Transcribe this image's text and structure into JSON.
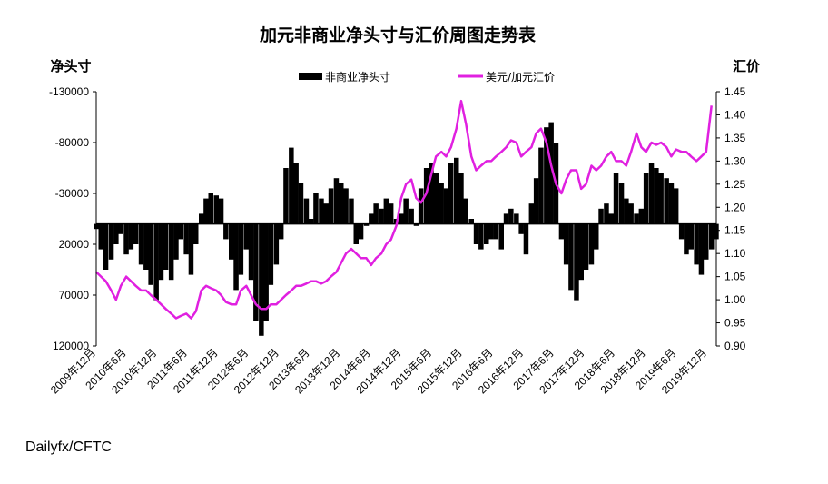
{
  "source_text": "Dailyfx/CFTC",
  "chart_data": {
    "type": "bar+line",
    "title": "加元非商业净头寸与汇价周图走势表",
    "left_axis": {
      "label": "净头寸",
      "range": [
        -130000,
        120000
      ],
      "reversed": true,
      "ticks": [
        "-130000",
        "-80000",
        "-30000",
        "20000",
        "70000",
        "120000"
      ],
      "tick_values": [
        -130000,
        -80000,
        -30000,
        20000,
        70000,
        120000
      ]
    },
    "right_axis": {
      "label": "汇价",
      "range": [
        0.9,
        1.45
      ],
      "ticks": [
        "1.45",
        "1.40",
        "1.35",
        "1.30",
        "1.25",
        "1.20",
        "1.15",
        "1.10",
        "1.05",
        "1.00",
        "0.95",
        "0.90"
      ],
      "tick_values": [
        1.45,
        1.4,
        1.35,
        1.3,
        1.25,
        1.2,
        1.15,
        1.1,
        1.05,
        1.0,
        0.95,
        0.9
      ]
    },
    "x_ticks": [
      "2009年12月",
      "2010年6月",
      "2010年12月",
      "2011年6月",
      "2011年12月",
      "2012年6月",
      "2012年12月",
      "2013年6月",
      "2013年12月",
      "2014年6月",
      "2014年12月",
      "2015年6月",
      "2015年12月",
      "2016年6月",
      "2016年12月",
      "2017年6月",
      "2017年12月",
      "2018年6月",
      "2018年12月",
      "2019年6月",
      "2019年12月"
    ],
    "x_range": [
      2009.92,
      2020.25
    ],
    "grid": false,
    "legend_position": "top",
    "legend": [
      {
        "name": "非商业净头寸",
        "color": "#000000",
        "kind": "bar"
      },
      {
        "name": "美元/加元汇价",
        "color": "#e020e0",
        "kind": "line"
      }
    ],
    "series": [
      {
        "name": "非商业净头寸",
        "type": "bar",
        "color": "#000000",
        "points": [
          [
            2009.92,
            5000
          ],
          [
            2010.0,
            25000
          ],
          [
            2010.08,
            45000
          ],
          [
            2010.17,
            35000
          ],
          [
            2010.25,
            20000
          ],
          [
            2010.33,
            10000
          ],
          [
            2010.42,
            30000
          ],
          [
            2010.5,
            25000
          ],
          [
            2010.58,
            20000
          ],
          [
            2010.67,
            40000
          ],
          [
            2010.75,
            45000
          ],
          [
            2010.83,
            60000
          ],
          [
            2010.92,
            75000
          ],
          [
            2011.0,
            55000
          ],
          [
            2011.08,
            45000
          ],
          [
            2011.17,
            55000
          ],
          [
            2011.25,
            35000
          ],
          [
            2011.33,
            15000
          ],
          [
            2011.42,
            30000
          ],
          [
            2011.5,
            50000
          ],
          [
            2011.58,
            20000
          ],
          [
            2011.67,
            -10000
          ],
          [
            2011.75,
            -25000
          ],
          [
            2011.83,
            -30000
          ],
          [
            2011.92,
            -28000
          ],
          [
            2012.0,
            -25000
          ],
          [
            2012.08,
            15000
          ],
          [
            2012.17,
            35000
          ],
          [
            2012.25,
            65000
          ],
          [
            2012.33,
            50000
          ],
          [
            2012.42,
            25000
          ],
          [
            2012.5,
            55000
          ],
          [
            2012.58,
            95000
          ],
          [
            2012.67,
            110000
          ],
          [
            2012.75,
            95000
          ],
          [
            2012.83,
            60000
          ],
          [
            2012.92,
            40000
          ],
          [
            2013.0,
            15000
          ],
          [
            2013.08,
            -55000
          ],
          [
            2013.17,
            -75000
          ],
          [
            2013.25,
            -60000
          ],
          [
            2013.33,
            -40000
          ],
          [
            2013.42,
            -25000
          ],
          [
            2013.5,
            -5000
          ],
          [
            2013.58,
            -30000
          ],
          [
            2013.67,
            -25000
          ],
          [
            2013.75,
            -20000
          ],
          [
            2013.83,
            -35000
          ],
          [
            2013.92,
            -45000
          ],
          [
            2014.0,
            -40000
          ],
          [
            2014.08,
            -35000
          ],
          [
            2014.17,
            -25000
          ],
          [
            2014.25,
            20000
          ],
          [
            2014.33,
            15000
          ],
          [
            2014.42,
            2000
          ],
          [
            2014.5,
            -10000
          ],
          [
            2014.58,
            -20000
          ],
          [
            2014.67,
            -15000
          ],
          [
            2014.75,
            -25000
          ],
          [
            2014.83,
            -20000
          ],
          [
            2014.92,
            -5000
          ],
          [
            2015.0,
            -10000
          ],
          [
            2015.08,
            -25000
          ],
          [
            2015.17,
            -15000
          ],
          [
            2015.25,
            2000
          ],
          [
            2015.33,
            -35000
          ],
          [
            2015.42,
            -55000
          ],
          [
            2015.5,
            -60000
          ],
          [
            2015.58,
            -50000
          ],
          [
            2015.67,
            -40000
          ],
          [
            2015.75,
            -35000
          ],
          [
            2015.83,
            -60000
          ],
          [
            2015.92,
            -65000
          ],
          [
            2016.0,
            -50000
          ],
          [
            2016.08,
            -25000
          ],
          [
            2016.17,
            -5000
          ],
          [
            2016.25,
            20000
          ],
          [
            2016.33,
            25000
          ],
          [
            2016.42,
            20000
          ],
          [
            2016.5,
            15000
          ],
          [
            2016.58,
            15000
          ],
          [
            2016.67,
            25000
          ],
          [
            2016.75,
            -10000
          ],
          [
            2016.83,
            -15000
          ],
          [
            2016.92,
            -10000
          ],
          [
            2017.0,
            10000
          ],
          [
            2017.08,
            30000
          ],
          [
            2017.17,
            -20000
          ],
          [
            2017.25,
            -45000
          ],
          [
            2017.33,
            -75000
          ],
          [
            2017.42,
            -95000
          ],
          [
            2017.5,
            -100000
          ],
          [
            2017.58,
            -80000
          ],
          [
            2017.67,
            15000
          ],
          [
            2017.75,
            40000
          ],
          [
            2017.83,
            65000
          ],
          [
            2017.92,
            75000
          ],
          [
            2018.0,
            55000
          ],
          [
            2018.08,
            45000
          ],
          [
            2018.17,
            40000
          ],
          [
            2018.25,
            25000
          ],
          [
            2018.33,
            -15000
          ],
          [
            2018.42,
            -20000
          ],
          [
            2018.5,
            -10000
          ],
          [
            2018.58,
            -50000
          ],
          [
            2018.67,
            -40000
          ],
          [
            2018.75,
            -25000
          ],
          [
            2018.83,
            -20000
          ],
          [
            2018.92,
            -10000
          ],
          [
            2019.0,
            -15000
          ],
          [
            2019.08,
            -50000
          ],
          [
            2019.17,
            -60000
          ],
          [
            2019.25,
            -55000
          ],
          [
            2019.33,
            -50000
          ],
          [
            2019.42,
            -45000
          ],
          [
            2019.5,
            -40000
          ],
          [
            2019.58,
            -35000
          ],
          [
            2019.67,
            15000
          ],
          [
            2019.75,
            30000
          ],
          [
            2019.83,
            25000
          ],
          [
            2019.92,
            40000
          ],
          [
            2020.0,
            50000
          ],
          [
            2020.08,
            35000
          ],
          [
            2020.17,
            25000
          ],
          [
            2020.25,
            15000
          ]
        ]
      },
      {
        "name": "美元/加元汇价",
        "type": "line",
        "color": "#e020e0",
        "points": [
          [
            2009.92,
            1.06
          ],
          [
            2010.0,
            1.05
          ],
          [
            2010.08,
            1.04
          ],
          [
            2010.17,
            1.02
          ],
          [
            2010.25,
            1.0
          ],
          [
            2010.33,
            1.03
          ],
          [
            2010.42,
            1.05
          ],
          [
            2010.5,
            1.04
          ],
          [
            2010.58,
            1.03
          ],
          [
            2010.67,
            1.02
          ],
          [
            2010.75,
            1.02
          ],
          [
            2010.83,
            1.01
          ],
          [
            2010.92,
            1.0
          ],
          [
            2011.0,
            0.99
          ],
          [
            2011.08,
            0.98
          ],
          [
            2011.17,
            0.97
          ],
          [
            2011.25,
            0.96
          ],
          [
            2011.33,
            0.965
          ],
          [
            2011.42,
            0.97
          ],
          [
            2011.5,
            0.96
          ],
          [
            2011.58,
            0.975
          ],
          [
            2011.67,
            1.02
          ],
          [
            2011.75,
            1.03
          ],
          [
            2011.83,
            1.025
          ],
          [
            2011.92,
            1.02
          ],
          [
            2012.0,
            1.01
          ],
          [
            2012.08,
            0.995
          ],
          [
            2012.17,
            0.99
          ],
          [
            2012.25,
            0.99
          ],
          [
            2012.33,
            1.02
          ],
          [
            2012.42,
            1.03
          ],
          [
            2012.5,
            1.01
          ],
          [
            2012.58,
            0.99
          ],
          [
            2012.67,
            0.98
          ],
          [
            2012.75,
            0.98
          ],
          [
            2012.83,
            0.99
          ],
          [
            2012.92,
            0.99
          ],
          [
            2013.0,
            1.0
          ],
          [
            2013.08,
            1.01
          ],
          [
            2013.17,
            1.02
          ],
          [
            2013.25,
            1.03
          ],
          [
            2013.33,
            1.03
          ],
          [
            2013.42,
            1.035
          ],
          [
            2013.5,
            1.04
          ],
          [
            2013.58,
            1.04
          ],
          [
            2013.67,
            1.035
          ],
          [
            2013.75,
            1.04
          ],
          [
            2013.83,
            1.05
          ],
          [
            2013.92,
            1.06
          ],
          [
            2014.0,
            1.08
          ],
          [
            2014.08,
            1.1
          ],
          [
            2014.17,
            1.11
          ],
          [
            2014.25,
            1.1
          ],
          [
            2014.33,
            1.09
          ],
          [
            2014.42,
            1.09
          ],
          [
            2014.5,
            1.075
          ],
          [
            2014.58,
            1.09
          ],
          [
            2014.67,
            1.1
          ],
          [
            2014.75,
            1.12
          ],
          [
            2014.83,
            1.13
          ],
          [
            2014.92,
            1.16
          ],
          [
            2015.0,
            1.22
          ],
          [
            2015.08,
            1.25
          ],
          [
            2015.17,
            1.26
          ],
          [
            2015.25,
            1.22
          ],
          [
            2015.33,
            1.21
          ],
          [
            2015.42,
            1.23
          ],
          [
            2015.5,
            1.27
          ],
          [
            2015.58,
            1.31
          ],
          [
            2015.67,
            1.32
          ],
          [
            2015.75,
            1.31
          ],
          [
            2015.83,
            1.33
          ],
          [
            2015.92,
            1.37
          ],
          [
            2016.0,
            1.43
          ],
          [
            2016.08,
            1.38
          ],
          [
            2016.17,
            1.31
          ],
          [
            2016.25,
            1.28
          ],
          [
            2016.33,
            1.29
          ],
          [
            2016.42,
            1.3
          ],
          [
            2016.5,
            1.3
          ],
          [
            2016.58,
            1.31
          ],
          [
            2016.67,
            1.32
          ],
          [
            2016.75,
            1.33
          ],
          [
            2016.83,
            1.345
          ],
          [
            2016.92,
            1.34
          ],
          [
            2017.0,
            1.31
          ],
          [
            2017.08,
            1.32
          ],
          [
            2017.17,
            1.33
          ],
          [
            2017.25,
            1.36
          ],
          [
            2017.33,
            1.37
          ],
          [
            2017.42,
            1.34
          ],
          [
            2017.5,
            1.29
          ],
          [
            2017.58,
            1.25
          ],
          [
            2017.67,
            1.23
          ],
          [
            2017.75,
            1.26
          ],
          [
            2017.83,
            1.28
          ],
          [
            2017.92,
            1.28
          ],
          [
            2018.0,
            1.24
          ],
          [
            2018.08,
            1.25
          ],
          [
            2018.17,
            1.29
          ],
          [
            2018.25,
            1.28
          ],
          [
            2018.33,
            1.29
          ],
          [
            2018.42,
            1.31
          ],
          [
            2018.5,
            1.32
          ],
          [
            2018.58,
            1.3
          ],
          [
            2018.67,
            1.3
          ],
          [
            2018.75,
            1.29
          ],
          [
            2018.83,
            1.32
          ],
          [
            2018.92,
            1.36
          ],
          [
            2019.0,
            1.33
          ],
          [
            2019.08,
            1.32
          ],
          [
            2019.17,
            1.34
          ],
          [
            2019.25,
            1.335
          ],
          [
            2019.33,
            1.34
          ],
          [
            2019.42,
            1.33
          ],
          [
            2019.5,
            1.31
          ],
          [
            2019.58,
            1.325
          ],
          [
            2019.67,
            1.32
          ],
          [
            2019.75,
            1.32
          ],
          [
            2019.83,
            1.31
          ],
          [
            2019.92,
            1.3
          ],
          [
            2020.0,
            1.31
          ],
          [
            2020.08,
            1.32
          ],
          [
            2020.17,
            1.42
          ]
        ]
      }
    ]
  }
}
